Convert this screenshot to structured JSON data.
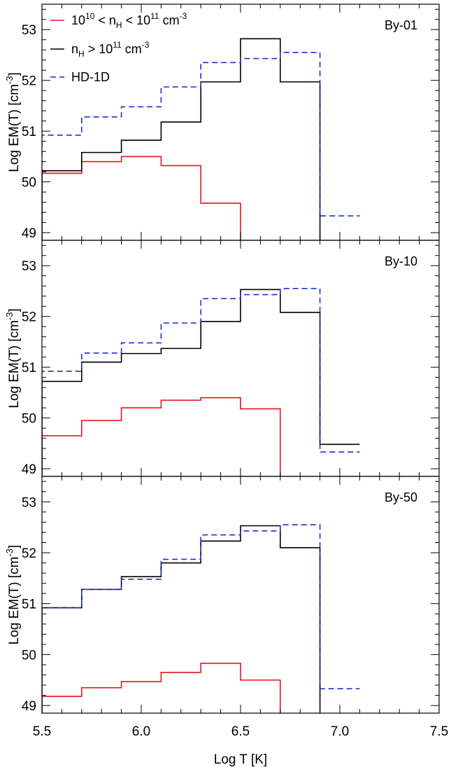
{
  "chart_data": {
    "type": "line",
    "style": "step",
    "xlabel": "Log T [K]",
    "ylabel_main": "Log EM(T) [cm",
    "ylabel_sup": "-3",
    "ylabel_end": "]",
    "xlim": [
      5.5,
      7.5
    ],
    "ylim": [
      48.85,
      53.5
    ],
    "xticks": [
      5.5,
      6.0,
      6.5,
      7.0,
      7.5
    ],
    "xtick_labels": [
      "5.5",
      "6.0",
      "6.5",
      "7.0",
      "7.5"
    ],
    "yticks": [
      49,
      50,
      51,
      52,
      53
    ],
    "ytick_labels": [
      "49",
      "50",
      "51",
      "52",
      "53"
    ],
    "grid": false,
    "legend_position": "top-left",
    "colors": {
      "low_density": "#e8141c",
      "high_density": "#000000",
      "hd1d": "#1c2fd8"
    },
    "legend": [
      {
        "key": "low",
        "color": "#e8141c",
        "dash": false,
        "parts": [
          {
            "t": "10",
            "s": "n"
          },
          {
            "t": "10",
            "s": "sup"
          },
          {
            "t": " < n",
            "s": "n"
          },
          {
            "t": "H",
            "s": "sub"
          },
          {
            "t": " < 10",
            "s": "n"
          },
          {
            "t": "11",
            "s": "sup"
          },
          {
            "t": " cm",
            "s": "n"
          },
          {
            "t": "-3",
            "s": "sup"
          }
        ]
      },
      {
        "key": "high",
        "color": "#000000",
        "dash": false,
        "parts": [
          {
            "t": "n",
            "s": "n"
          },
          {
            "t": "H",
            "s": "sub"
          },
          {
            "t": " > 10",
            "s": "n"
          },
          {
            "t": "11",
            "s": "sup"
          },
          {
            "t": " cm",
            "s": "n"
          },
          {
            "t": "-3",
            "s": "sup"
          }
        ]
      },
      {
        "key": "hd",
        "color": "#1c2fd8",
        "dash": true,
        "parts": [
          {
            "t": "HD-1D",
            "s": "n"
          }
        ]
      }
    ],
    "bin_edges": [
      5.5,
      5.7,
      5.9,
      6.1,
      6.3,
      6.5,
      6.7,
      6.9,
      7.1
    ],
    "panels": [
      {
        "label": "By-01",
        "series": [
          {
            "key": "low",
            "values": [
              50.17,
              50.4,
              50.5,
              50.32,
              49.58,
              48.5,
              null,
              null
            ]
          },
          {
            "key": "high",
            "values": [
              50.22,
              50.58,
              50.82,
              51.18,
              51.97,
              52.82,
              51.97,
              48.5
            ]
          },
          {
            "key": "hd",
            "values": [
              50.92,
              51.28,
              51.48,
              51.87,
              52.35,
              52.43,
              52.55,
              49.33
            ]
          }
        ]
      },
      {
        "label": "By-10",
        "series": [
          {
            "key": "low",
            "values": [
              49.65,
              49.95,
              50.2,
              50.35,
              50.4,
              50.18,
              48.5,
              null
            ]
          },
          {
            "key": "high",
            "values": [
              50.72,
              51.1,
              51.27,
              51.37,
              51.9,
              52.53,
              52.08,
              49.48
            ]
          },
          {
            "key": "hd",
            "values": [
              50.92,
              51.28,
              51.48,
              51.87,
              52.35,
              52.43,
              52.55,
              49.33
            ]
          }
        ]
      },
      {
        "label": "By-50",
        "series": [
          {
            "key": "low",
            "values": [
              49.18,
              49.35,
              49.47,
              49.65,
              49.83,
              49.5,
              48.5,
              null
            ]
          },
          {
            "key": "high",
            "values": [
              50.92,
              51.28,
              51.53,
              51.8,
              52.23,
              52.53,
              52.1,
              48.5
            ]
          },
          {
            "key": "hd",
            "values": [
              50.92,
              51.28,
              51.48,
              51.87,
              52.35,
              52.43,
              52.55,
              49.33
            ]
          }
        ]
      }
    ]
  }
}
